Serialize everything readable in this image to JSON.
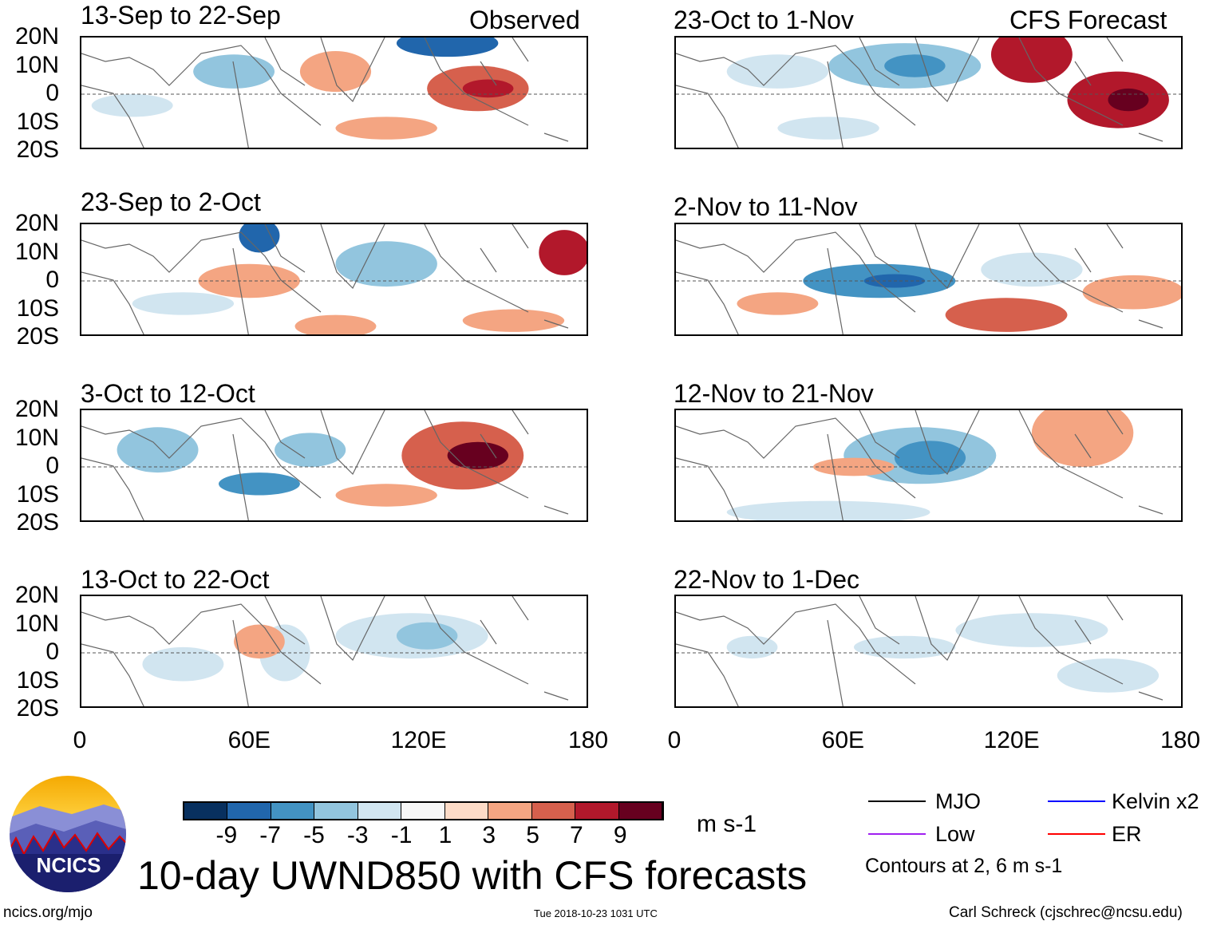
{
  "panels_left": [
    {
      "title": "13-Sep to 22-Sep",
      "tag": "Observed"
    },
    {
      "title": "23-Sep to 2-Oct"
    },
    {
      "title": "3-Oct to 12-Oct"
    },
    {
      "title": "13-Oct to 22-Oct"
    }
  ],
  "panels_right": [
    {
      "title": "23-Oct to 1-Nov",
      "tag": "CFS Forecast"
    },
    {
      "title": "2-Nov to 11-Nov"
    },
    {
      "title": "12-Nov to 21-Nov"
    },
    {
      "title": "22-Nov to 1-Dec"
    }
  ],
  "lat_labels": [
    "20N",
    "10N",
    "0",
    "10S",
    "20S"
  ],
  "lon_labels": [
    "0",
    "60E",
    "120E",
    "180"
  ],
  "colorbar": {
    "ticks": [
      "-9",
      "-7",
      "-5",
      "-3",
      "-1",
      "1",
      "3",
      "5",
      "7",
      "9"
    ],
    "colors": [
      "#08305f",
      "#2166ac",
      "#4393c3",
      "#92c5de",
      "#d1e5f0",
      "#f7f7f7",
      "#fddbc7",
      "#f4a582",
      "#d6604d",
      "#b2182b",
      "#67001f"
    ],
    "units": "m s-1"
  },
  "legend": {
    "items": [
      {
        "label": "MJO",
        "color": "#000000"
      },
      {
        "label": "Kelvin x2",
        "color": "#0000ff"
      },
      {
        "label": "Low",
        "color": "#a020f0"
      },
      {
        "label": "ER",
        "color": "#ff0000"
      }
    ],
    "note": "Contours at 2, 6 m s-1"
  },
  "title": "10-day UWND850 with CFS forecasts",
  "logo_text": "NCICS",
  "footer": {
    "left": "ncics.org/mjo",
    "center": "Tue 2018-10-23 1031 UTC",
    "right": "Carl Schreck (cjschrec@ncsu.edu)"
  }
}
